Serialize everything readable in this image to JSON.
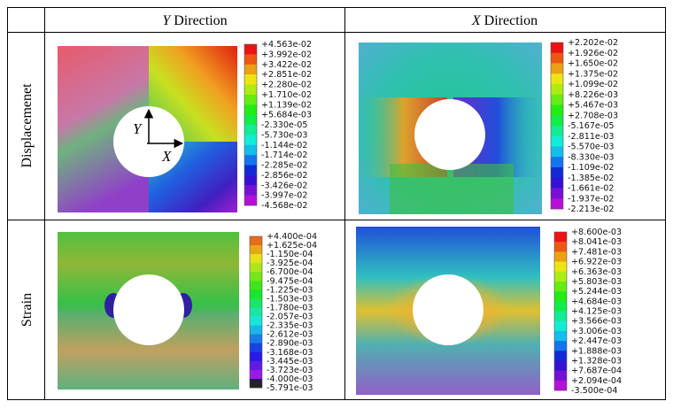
{
  "header": {
    "columns": [
      {
        "axis": "Y",
        "word": "Direction"
      },
      {
        "axis": "X",
        "word": "Direction"
      }
    ]
  },
  "rows": [
    {
      "label": "Displacemenet",
      "cells": [
        {
          "legend": [
            "+4.563e-02",
            "+3.992e-02",
            "+3.422e-02",
            "+2.851e-02",
            "+2.280e-02",
            "+1.710e-02",
            "+1.139e-02",
            "+5.684e-03",
            "-2.330e-05",
            "-5.730e-03",
            "-1.144e-02",
            "-1.714e-02",
            "-2.285e-02",
            "-2.856e-02",
            "-3.426e-02",
            "-3.997e-02",
            "-4.568e-02"
          ],
          "annotations": {
            "y": "Y",
            "x": "X"
          }
        },
        {
          "legend": [
            "+2.202e-02",
            "+1.926e-02",
            "+1.650e-02",
            "+1.375e-02",
            "+1.099e-02",
            "+8.226e-03",
            "+5.467e-03",
            "+2.708e-03",
            "-5.167e-05",
            "-2.811e-03",
            "-5.570e-03",
            "-8.330e-03",
            "-1.109e-02",
            "-1.385e-02",
            "-1.661e-02",
            "-1.937e-02",
            "-2.213e-02"
          ]
        }
      ]
    },
    {
      "label": "Strain",
      "cells": [
        {
          "legend": [
            "+4.400e-04",
            "+1.625e-04",
            "-1.150e-04",
            "-3.925e-04",
            "-6.700e-04",
            "-9.475e-04",
            "-1.225e-03",
            "-1.503e-03",
            "-1.780e-03",
            "-2.057e-03",
            "-2.335e-03",
            "-2.612e-03",
            "-2.890e-03",
            "-3.168e-03",
            "-3.445e-03",
            "-3.723e-03",
            "-4.000e-03",
            "-5.791e-03"
          ]
        },
        {
          "legend": [
            "+8.600e-03",
            "+8.041e-03",
            "+7.481e-03",
            "+6.922e-03",
            "+6.363e-03",
            "+5.803e-03",
            "+5.244e-03",
            "+4.684e-03",
            "+4.125e-03",
            "+3.566e-03",
            "+3.006e-03",
            "+2.447e-03",
            "+1.888e-03",
            "+1.328e-03",
            "+7.687e-04",
            "+2.094e-04",
            "-3.500e-04"
          ]
        }
      ]
    }
  ]
}
